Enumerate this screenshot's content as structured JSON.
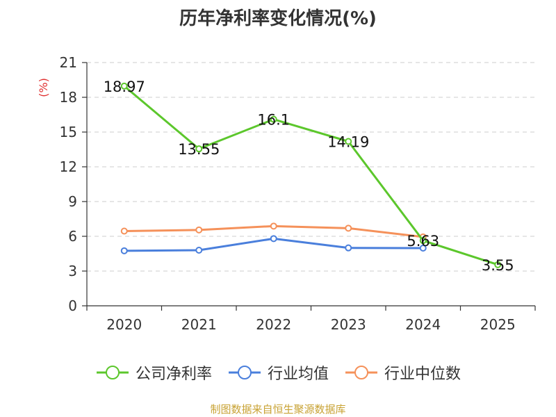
{
  "chart_data": {
    "type": "line",
    "title": "历年净利率变化情况(%)",
    "ylabel": "(%)",
    "xlabel": "",
    "categories": [
      "2020",
      "2021",
      "2022",
      "2023",
      "2024",
      "2025"
    ],
    "ylim": [
      0,
      21
    ],
    "yticks": [
      0,
      3,
      6,
      9,
      12,
      15,
      18,
      21
    ],
    "grid": true,
    "legend_position": "bottom",
    "series": [
      {
        "name": "公司净利率",
        "color": "#5cc72c",
        "values": [
          18.97,
          13.55,
          16.1,
          14.19,
          5.63,
          3.55
        ],
        "show_labels": true
      },
      {
        "name": "行业均值",
        "color": "#4a7fdc",
        "values": [
          4.75,
          4.8,
          5.8,
          5.0,
          4.98,
          null
        ],
        "show_labels": false
      },
      {
        "name": "行业中位数",
        "color": "#f5915a",
        "values": [
          6.45,
          6.55,
          6.88,
          6.7,
          5.95,
          null
        ],
        "show_labels": false
      }
    ]
  },
  "footer": {
    "source": "制图数据来自恒生聚源数据库"
  },
  "colors": {
    "axis": "#333333",
    "grid": "#cccccc",
    "unit": "#e03030"
  }
}
